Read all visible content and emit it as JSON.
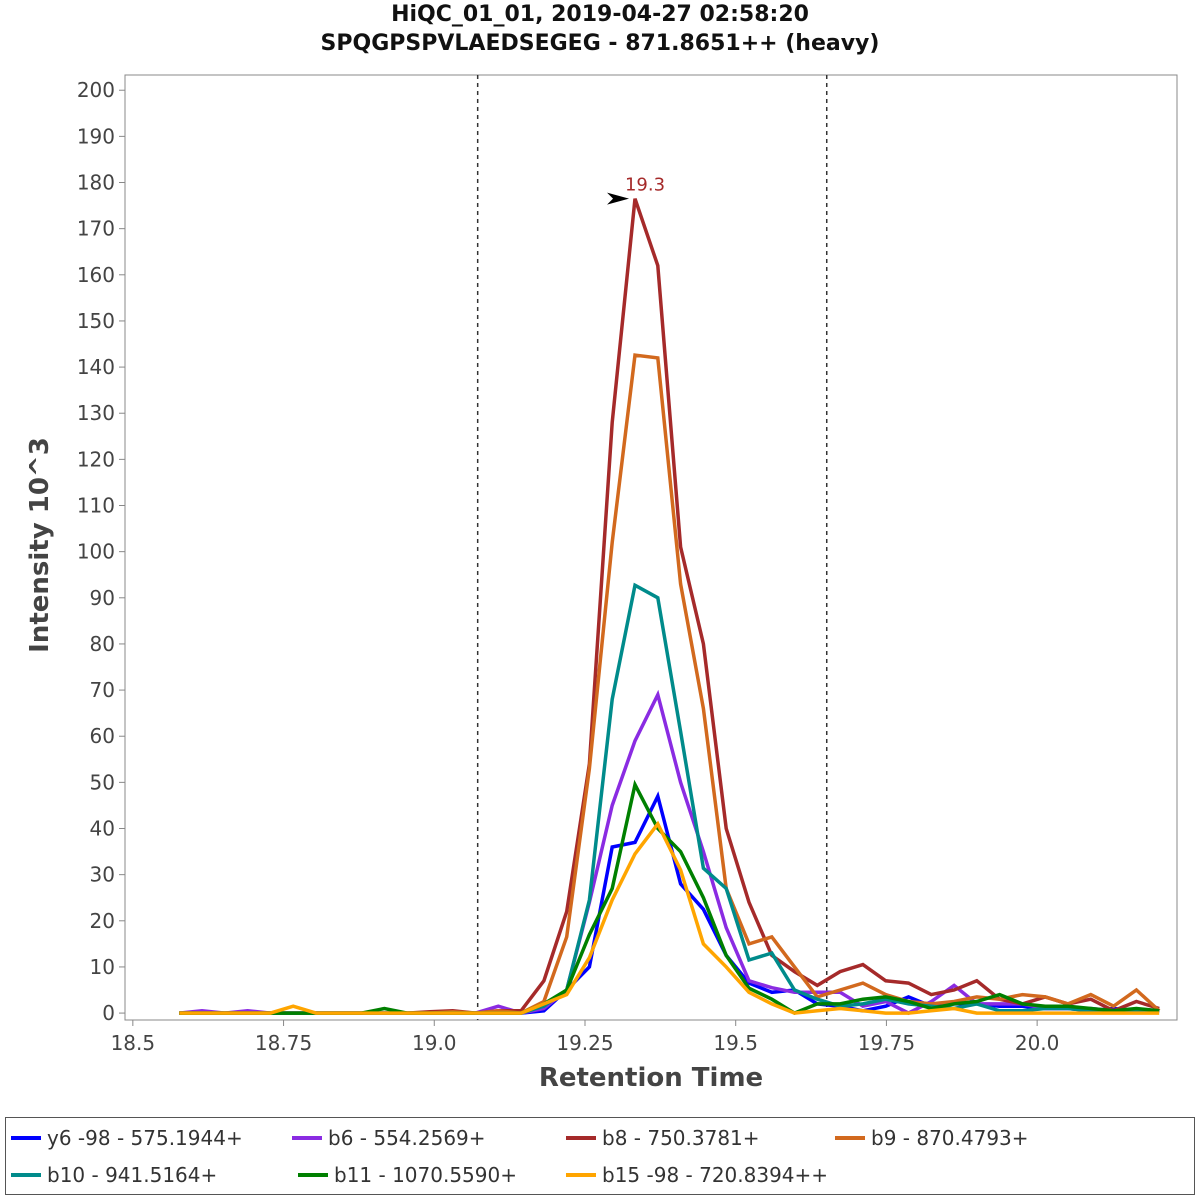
{
  "chart_data": {
    "type": "line",
    "title": "HiQC_01_01, 2019-04-27 02:58:20",
    "subtitle": "SPQGPSPVLAEDSEGEG - 871.8651++ (heavy)",
    "xlabel": "Retention Time",
    "ylabel": "Intensity 10^3",
    "xlim": [
      18.487,
      20.232
    ],
    "ylim": [
      -1.5,
      203.3
    ],
    "xticks": [
      "18.5",
      "18.75",
      "19.0",
      "19.25",
      "19.5",
      "19.75",
      "20.0"
    ],
    "xtick_values": [
      18.5,
      18.75,
      19.0,
      19.25,
      19.5,
      19.75,
      20.0
    ],
    "yticks": [
      0,
      10,
      20,
      30,
      40,
      50,
      60,
      70,
      80,
      90,
      100,
      110,
      120,
      130,
      140,
      150,
      160,
      170,
      180,
      190,
      200
    ],
    "grid": false,
    "x_start": 18.577,
    "x_step": 0.0378,
    "integration_bounds": [
      19.072,
      19.651
    ],
    "peak_annotation": {
      "label": "19.3",
      "x": 19.333,
      "y": 176.5,
      "color": "#a52a2a"
    },
    "legend_placement": "bottom",
    "series": [
      {
        "name": "y6 -98 - 575.1944+",
        "color": "#0000ff",
        "values": [
          0,
          0,
          0,
          0,
          0,
          0,
          0,
          0,
          0,
          0,
          0,
          0,
          0,
          0,
          0,
          0,
          0.5,
          5,
          10,
          36,
          37,
          47,
          28,
          22.5,
          12.5,
          6.5,
          4.5,
          5,
          2,
          1.5,
          0.5,
          1.5,
          3.5,
          1.5,
          2,
          2,
          1.5,
          1.5,
          1,
          1,
          0.5,
          1,
          0.5,
          0.5
        ]
      },
      {
        "name": "b6 - 554.2569+",
        "color": "#8a2be2",
        "values": [
          0,
          0.5,
          0,
          0.5,
          0,
          0,
          0,
          0,
          0,
          0,
          0,
          0,
          0,
          0,
          1.5,
          0,
          1,
          5,
          24,
          45,
          59,
          69,
          50,
          35,
          18.5,
          7,
          5.5,
          4.5,
          4.5,
          4.5,
          1.5,
          2.5,
          0,
          2.5,
          6,
          2,
          2,
          2,
          1,
          1,
          1,
          0.5,
          0.5,
          0.5
        ]
      },
      {
        "name": "b8 - 750.3781+",
        "color": "#a52a2a",
        "values": [
          0,
          0,
          0,
          0,
          0,
          0,
          0,
          0,
          0,
          0,
          0,
          0.3,
          0.5,
          0,
          0.5,
          0.5,
          7,
          22,
          54,
          128,
          176.5,
          162,
          101,
          80,
          40,
          24,
          12.5,
          9,
          6,
          9,
          10.5,
          7,
          6.5,
          4,
          5,
          7,
          3,
          2,
          3.5,
          2,
          3,
          0.5,
          2.5,
          1
        ]
      },
      {
        "name": "b9 - 870.4793+",
        "color": "#d2691e",
        "values": [
          0,
          0,
          0,
          0,
          0,
          0,
          0,
          0,
          0,
          0,
          0,
          0,
          0.3,
          0,
          0.5,
          0,
          2.5,
          16.5,
          53,
          102,
          142.6,
          142,
          93,
          66,
          27,
          15,
          16.5,
          10,
          3.5,
          5,
          6.5,
          4,
          2.5,
          2,
          2.5,
          3.5,
          3,
          4,
          3.5,
          2,
          4,
          1.5,
          5,
          0.5
        ]
      },
      {
        "name": "b10 - 941.5164+",
        "color": "#008b8b",
        "values": [
          0,
          0,
          0,
          0,
          0,
          0,
          0,
          0,
          0,
          0,
          0,
          0,
          0,
          0,
          0,
          0,
          1.5,
          5,
          24.5,
          68,
          92.7,
          90,
          61,
          31.4,
          27,
          11.5,
          13,
          5,
          3,
          1.5,
          2,
          3,
          2,
          1.5,
          1,
          2,
          0.5,
          0.5,
          1,
          1,
          0.5,
          0.5,
          0.5,
          0.5
        ]
      },
      {
        "name": "b11 - 1070.5590+",
        "color": "#008000",
        "values": [
          0,
          0,
          0,
          0,
          0,
          0,
          0,
          0,
          0,
          1,
          0,
          0,
          0,
          0,
          0,
          0,
          2,
          5,
          17,
          27,
          49.5,
          40,
          35,
          25,
          12.5,
          5.4,
          3,
          0,
          2,
          2,
          3,
          3.5,
          2.5,
          1,
          2,
          2.5,
          4,
          2,
          1.5,
          1.5,
          1,
          0.5,
          1,
          0.5
        ]
      },
      {
        "name": "b15 -98 - 720.8394++",
        "color": "#ffa500",
        "values": [
          0,
          0,
          0,
          0,
          0,
          1.5,
          0,
          0,
          0,
          0,
          0,
          0,
          0,
          0,
          0,
          0,
          2,
          4,
          12,
          24.5,
          34.5,
          41,
          31,
          15,
          10,
          4.5,
          2,
          0,
          0.5,
          1,
          0.5,
          0,
          0,
          0.5,
          1,
          0,
          0,
          0,
          0,
          0,
          0,
          0,
          0,
          0
        ]
      }
    ]
  }
}
